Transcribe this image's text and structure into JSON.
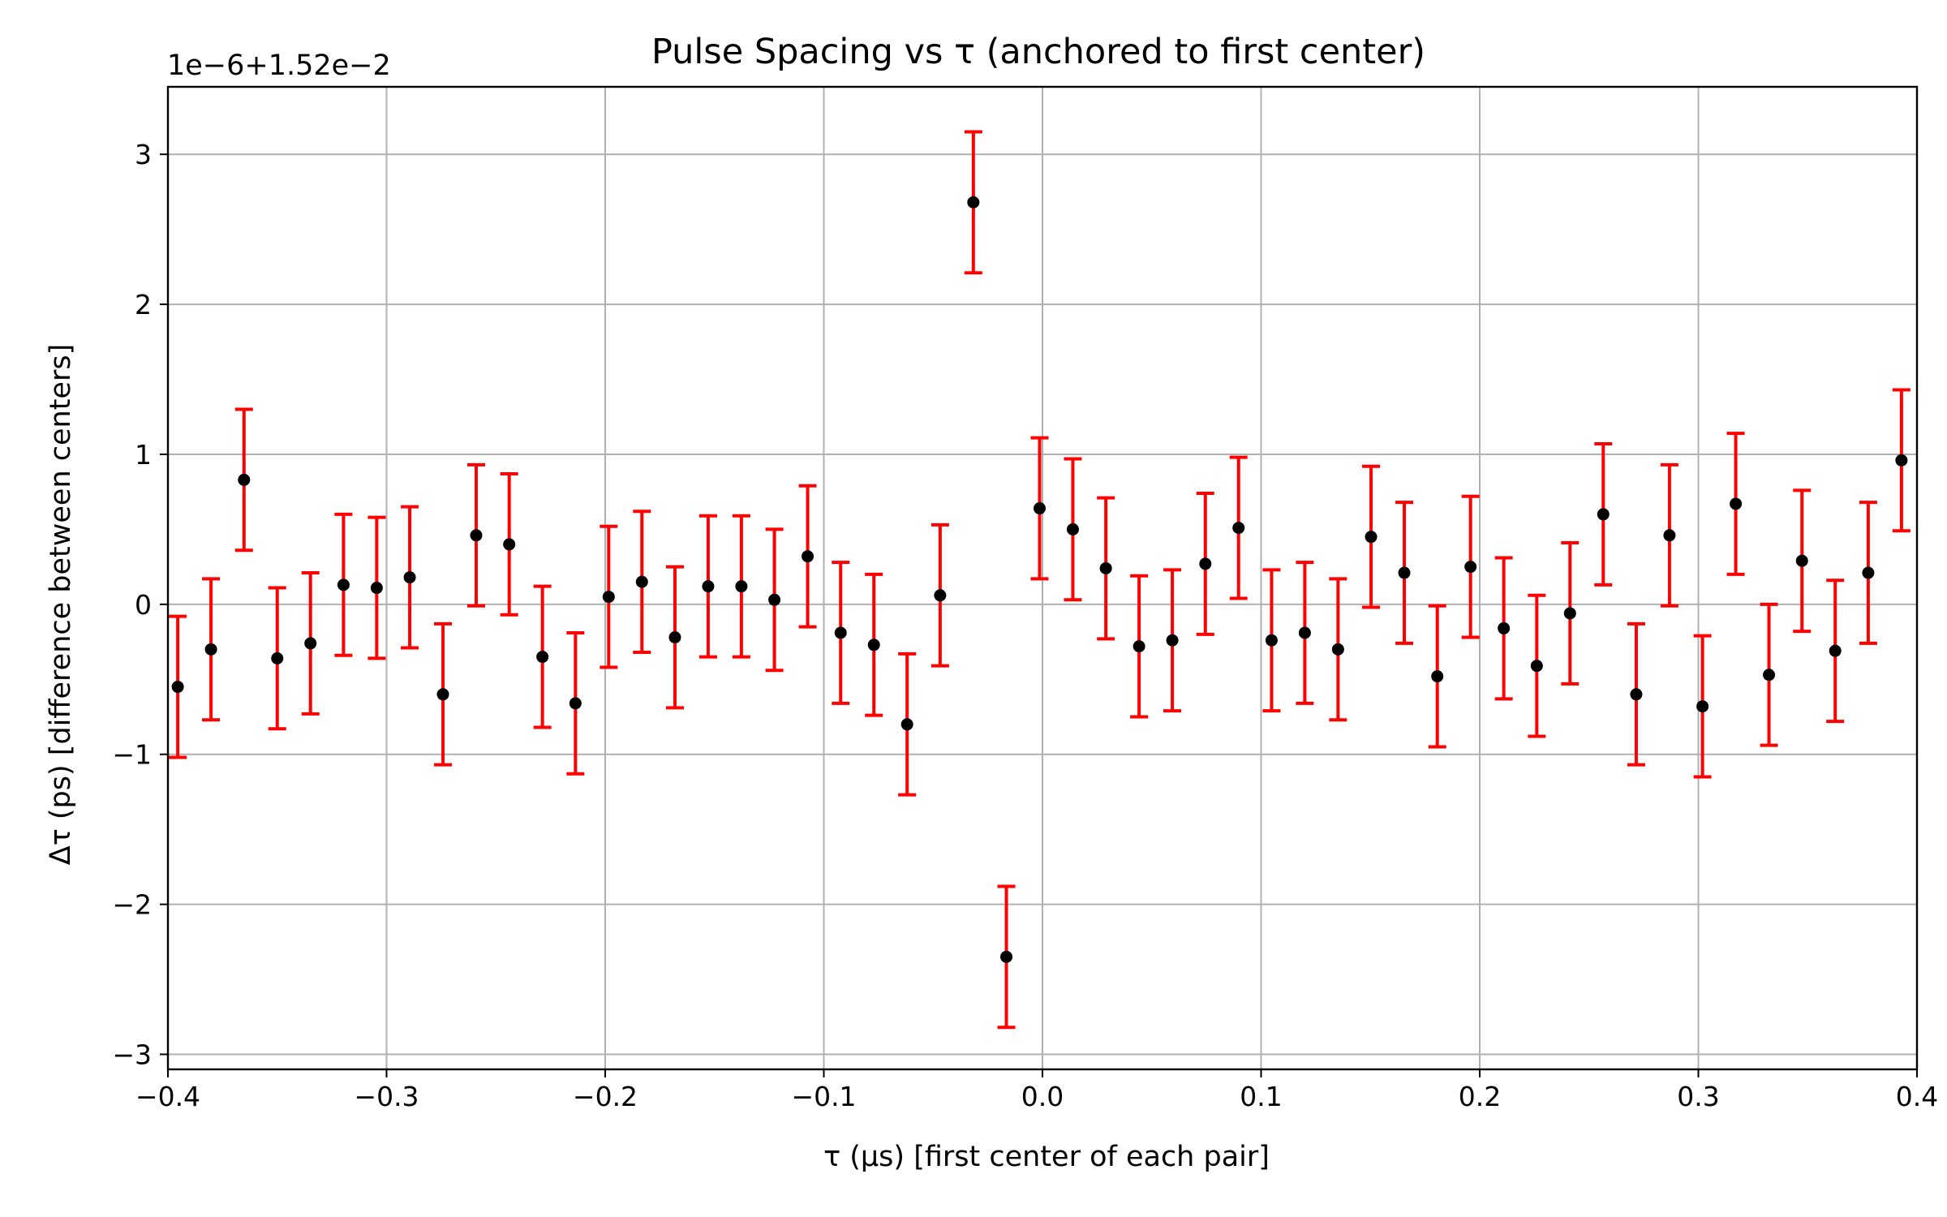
{
  "chart_data": {
    "type": "scatter",
    "title": "Pulse Spacing vs τ (anchored to first center)",
    "xlabel": "τ (μs) [first center of each pair]",
    "ylabel": "Δτ (ps) [difference between centers]",
    "offset_text": "1e−6+1.52e−2",
    "xlim": [
      -0.4,
      0.4
    ],
    "ylim": [
      -3.1,
      3.45
    ],
    "xticks": [
      -0.4,
      -0.3,
      -0.2,
      -0.1,
      0.0,
      0.1,
      0.2,
      0.3,
      0.4
    ],
    "xtick_labels": [
      "−0.4",
      "−0.3",
      "−0.2",
      "−0.1",
      "0.0",
      "0.1",
      "0.2",
      "0.3",
      "0.4"
    ],
    "yticks": [
      -3,
      -2,
      -1,
      0,
      1,
      2,
      3
    ],
    "ytick_labels": [
      "−3",
      "−2",
      "−1",
      "0",
      "1",
      "2",
      "3"
    ],
    "grid": true,
    "marker_color": "#000000",
    "errorbar_color": "#ff0000",
    "error": 0.47,
    "x": [
      -0.3955,
      -0.3803,
      -0.3652,
      -0.35,
      -0.3348,
      -0.3197,
      -0.3045,
      -0.2894,
      -0.2742,
      -0.259,
      -0.2439,
      -0.2287,
      -0.2136,
      -0.1984,
      -0.1832,
      -0.1681,
      -0.1529,
      -0.1377,
      -0.1226,
      -0.1074,
      -0.0923,
      -0.0771,
      -0.0619,
      -0.0468,
      -0.0316,
      -0.0165,
      -0.0013,
      0.0139,
      0.029,
      0.0442,
      0.0594,
      0.0745,
      0.0897,
      0.1048,
      0.12,
      0.1352,
      0.1503,
      0.1655,
      0.1806,
      0.1958,
      0.211,
      0.2261,
      0.2413,
      0.2565,
      0.2716,
      0.2868,
      0.3019,
      0.3171,
      0.3323,
      0.3474,
      0.3626,
      0.3777,
      0.3929
    ],
    "y": [
      -0.55,
      -0.3,
      0.83,
      -0.36,
      -0.26,
      0.13,
      0.11,
      0.18,
      -0.6,
      0.46,
      0.4,
      -0.35,
      -0.66,
      0.05,
      0.15,
      -0.22,
      0.12,
      0.12,
      0.03,
      0.32,
      -0.19,
      -0.27,
      -0.8,
      0.06,
      2.68,
      -2.35,
      0.64,
      0.5,
      0.24,
      -0.28,
      -0.24,
      0.27,
      0.51,
      -0.24,
      -0.19,
      -0.3,
      0.45,
      0.21,
      -0.48,
      0.25,
      -0.16,
      -0.41,
      -0.06,
      0.6,
      -0.6,
      0.46,
      -0.68,
      0.67,
      -0.47,
      0.29,
      -0.31,
      0.21,
      0.96
    ]
  }
}
